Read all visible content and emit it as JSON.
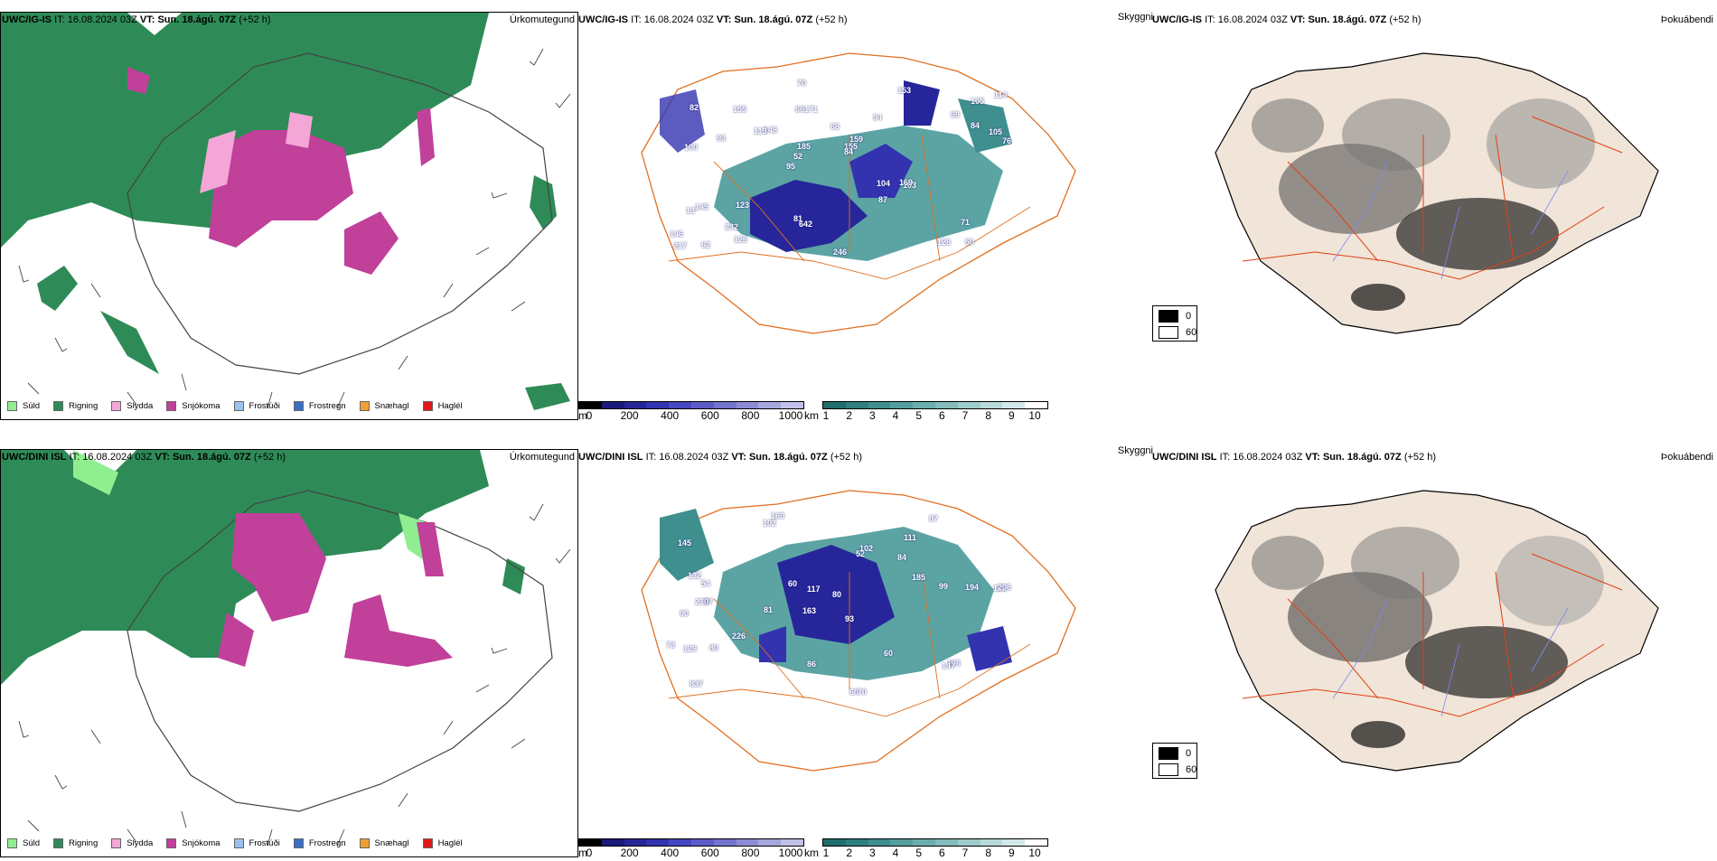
{
  "panels": [
    {
      "row": "top",
      "model": "UWC/IG-IS",
      "it_label": "IT:",
      "it_value": "16.08.2024 03Z",
      "vt_label": "VT:",
      "vt_value": "Sun. 18.ágú. 07Z",
      "lead": "(+52 h)"
    },
    {
      "row": "bottom",
      "model": "UWC/DINI ISL",
      "it_label": "IT:",
      "it_value": "16.08.2024 03Z",
      "vt_label": "VT:",
      "vt_value": "Sun. 18.ágú. 07Z",
      "lead": "(+52 h)"
    }
  ],
  "titles": {
    "precip_type": "Úrkomutegund",
    "cloud_base": "Skyggni",
    "fog": "Þokuábendi"
  },
  "precip_legend": [
    {
      "label": "Súld",
      "color": "#90ee90"
    },
    {
      "label": "Rigning",
      "color": "#2e8b57"
    },
    {
      "label": "Slydda",
      "color": "#f4a6d7"
    },
    {
      "label": "Snjókoma",
      "color": "#c0409a"
    },
    {
      "label": "Frostúði",
      "color": "#99c2f0"
    },
    {
      "label": "Frostregn",
      "color": "#3a6fc4"
    },
    {
      "label": "Snæhagl",
      "color": "#f0a030"
    },
    {
      "label": "Haglél",
      "color": "#e01818"
    }
  ],
  "ceiling_bar": {
    "unit": "m",
    "ticks": [
      "0",
      "200",
      "400",
      "600",
      "800",
      "1000"
    ],
    "colors": [
      "#000000",
      "#1a1a7a",
      "#26269a",
      "#3333b0",
      "#4646c0",
      "#5c5cc8",
      "#7373cf",
      "#8c8cd6",
      "#a6a6de",
      "#c0c0e8"
    ]
  },
  "visibility_bar": {
    "unit": "km",
    "ticks": [
      "1",
      "2",
      "3",
      "4",
      "5",
      "6",
      "7",
      "8",
      "9",
      "10"
    ],
    "colors": [
      "#1f6e6e",
      "#2e7f7f",
      "#3f8f8f",
      "#559e9e",
      "#6cadad",
      "#85bcbc",
      "#9ecbcb",
      "#b8dada",
      "#d2e8e8",
      "#ffffff"
    ]
  },
  "fog_legend": [
    {
      "label": "0",
      "color": "#000000"
    },
    {
      "label": "60",
      "color": "#ffffff"
    }
  ],
  "ceiling_labels_top": [
    "50",
    "100",
    "105",
    "95",
    "94",
    "62",
    "66",
    "68",
    "145",
    "148",
    "146",
    "232",
    "171",
    "159",
    "103",
    "82",
    "70",
    "76",
    "104",
    "84",
    "52",
    "81",
    "185",
    "155",
    "153",
    "123",
    "128",
    "71",
    "169",
    "246",
    "119",
    "93",
    "87",
    "126",
    "105",
    "155",
    "217",
    "642",
    "84",
    "13",
    "69",
    "114"
  ],
  "ceiling_labels_bottom": [
    "160",
    "111",
    "121",
    "163",
    "93",
    "67",
    "145",
    "84",
    "90",
    "52",
    "80",
    "837",
    "102",
    "81",
    "60",
    "70",
    "86",
    "87",
    "185",
    "226",
    "54",
    "230",
    "206",
    "194",
    "73",
    "132",
    "117",
    "99",
    "106",
    "129",
    "147",
    "102",
    "80",
    "60",
    "60"
  ]
}
